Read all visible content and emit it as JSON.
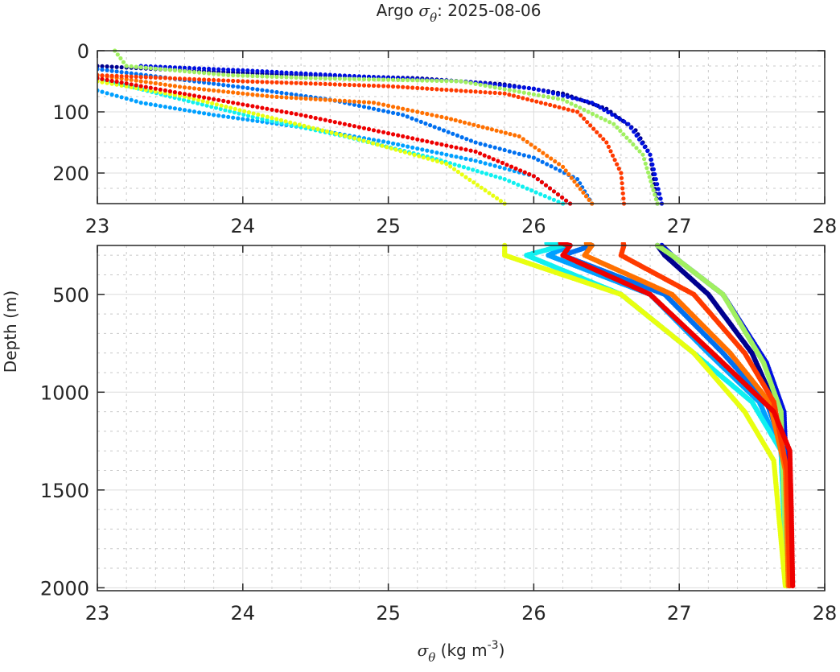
{
  "chart_data": [
    {
      "type": "scatter",
      "panel": "upper",
      "title_prefix": "Argo ",
      "title_symbol": "σ",
      "title_subscript": "θ",
      "title_suffix": ": 2025-08-06",
      "xlabel": "",
      "ylabel": "",
      "xlim": [
        23,
        28
      ],
      "ylim": [
        0,
        250
      ],
      "y_reversed": true,
      "xticks": [
        "23",
        "24",
        "25",
        "26",
        "27",
        "28"
      ],
      "yticks": [
        "0",
        "100",
        "200"
      ],
      "ytick_values": [
        0,
        100,
        200
      ],
      "grid": true,
      "minor_grid": true
    },
    {
      "type": "scatter",
      "panel": "lower",
      "xlabel_symbol": "σ",
      "xlabel_subscript": "θ",
      "xlabel_units": " (kg m",
      "xlabel_exp": "-3",
      "xlabel_close": ")",
      "ylabel": "Depth (m)",
      "xlim": [
        23,
        28
      ],
      "ylim": [
        250,
        2015
      ],
      "y_reversed": true,
      "xticks": [
        "23",
        "24",
        "25",
        "26",
        "27",
        "28"
      ],
      "yticks": [
        "500",
        "1000",
        "1500",
        "2000"
      ],
      "ytick_values": [
        500,
        1000,
        1500,
        2000
      ],
      "grid": true,
      "minor_grid": true
    }
  ],
  "profiles": [
    {
      "name": "profile-dark-navy",
      "color": "#00008f",
      "points": [
        [
          23.0,
          25
        ],
        [
          23.4,
          30
        ],
        [
          24.2,
          38
        ],
        [
          25.2,
          45
        ],
        [
          25.8,
          55
        ],
        [
          26.2,
          70
        ],
        [
          26.5,
          95
        ],
        [
          26.7,
          130
        ],
        [
          26.8,
          170
        ],
        [
          26.85,
          250
        ],
        [
          26.9,
          300
        ],
        [
          27.2,
          500
        ],
        [
          27.5,
          800
        ],
        [
          27.62,
          1000
        ],
        [
          27.7,
          1300
        ],
        [
          27.72,
          1600
        ],
        [
          27.74,
          2000
        ]
      ]
    },
    {
      "name": "profile-blue",
      "color": "#0010e0",
      "points": [
        [
          23.3,
          25
        ],
        [
          24.0,
          32
        ],
        [
          24.8,
          42
        ],
        [
          25.5,
          50
        ],
        [
          26.0,
          62
        ],
        [
          26.4,
          85
        ],
        [
          26.65,
          120
        ],
        [
          26.8,
          170
        ],
        [
          26.88,
          250
        ],
        [
          26.95,
          300
        ],
        [
          27.3,
          500
        ],
        [
          27.6,
          850
        ],
        [
          27.72,
          1100
        ],
        [
          27.74,
          1500
        ],
        [
          27.76,
          2000
        ]
      ]
    },
    {
      "name": "profile-mid-blue",
      "color": "#0070f0",
      "points": [
        [
          23.0,
          30
        ],
        [
          23.5,
          45
        ],
        [
          24.0,
          60
        ],
        [
          24.6,
          80
        ],
        [
          25.1,
          105
        ],
        [
          25.6,
          150
        ],
        [
          26.0,
          175
        ],
        [
          26.3,
          210
        ],
        [
          26.4,
          250
        ],
        [
          26.2,
          300
        ],
        [
          26.9,
          500
        ],
        [
          27.3,
          800
        ],
        [
          27.6,
          1050
        ],
        [
          27.72,
          1300
        ],
        [
          27.75,
          2000
        ]
      ]
    },
    {
      "name": "profile-sky-blue",
      "color": "#00a0ff",
      "points": [
        [
          23.0,
          65
        ],
        [
          23.3,
          85
        ],
        [
          23.8,
          105
        ],
        [
          24.4,
          125
        ],
        [
          25.0,
          150
        ],
        [
          25.6,
          180
        ],
        [
          26.0,
          205
        ],
        [
          26.25,
          250
        ],
        [
          26.1,
          300
        ],
        [
          26.8,
          500
        ],
        [
          27.2,
          800
        ],
        [
          27.55,
          1050
        ],
        [
          27.7,
          1300
        ],
        [
          27.74,
          2000
        ]
      ]
    },
    {
      "name": "profile-cyan",
      "color": "#10f0f0",
      "points": [
        [
          23.0,
          45
        ],
        [
          23.5,
          75
        ],
        [
          24.1,
          110
        ],
        [
          24.7,
          140
        ],
        [
          25.3,
          175
        ],
        [
          25.8,
          210
        ],
        [
          26.2,
          250
        ],
        [
          25.95,
          300
        ],
        [
          26.6,
          500
        ],
        [
          27.1,
          800
        ],
        [
          27.5,
          1050
        ],
        [
          27.7,
          1300
        ],
        [
          27.74,
          2000
        ]
      ]
    },
    {
      "name": "profile-lime",
      "color": "#a0f060",
      "points": [
        [
          23.12,
          0
        ],
        [
          23.2,
          25
        ],
        [
          23.9,
          40
        ],
        [
          24.5,
          45
        ],
        [
          25.5,
          50
        ],
        [
          26.2,
          80
        ],
        [
          26.55,
          120
        ],
        [
          26.75,
          170
        ],
        [
          26.85,
          250
        ],
        [
          26.95,
          300
        ],
        [
          27.3,
          500
        ],
        [
          27.58,
          850
        ],
        [
          27.7,
          1100
        ],
        [
          27.74,
          2000
        ]
      ]
    },
    {
      "name": "profile-yellow",
      "color": "#e8ff10",
      "points": [
        [
          23.0,
          50
        ],
        [
          23.6,
          75
        ],
        [
          24.2,
          110
        ],
        [
          24.8,
          145
        ],
        [
          25.4,
          185
        ],
        [
          25.8,
          250
        ],
        [
          25.8,
          300
        ],
        [
          26.6,
          500
        ],
        [
          27.1,
          800
        ],
        [
          27.45,
          1100
        ],
        [
          27.65,
          1350
        ],
        [
          27.73,
          2000
        ]
      ]
    },
    {
      "name": "profile-orange",
      "color": "#ff7000",
      "points": [
        [
          23.0,
          40
        ],
        [
          23.6,
          60
        ],
        [
          24.2,
          75
        ],
        [
          24.9,
          85
        ],
        [
          25.4,
          110
        ],
        [
          25.9,
          140
        ],
        [
          26.2,
          190
        ],
        [
          26.4,
          250
        ],
        [
          26.35,
          300
        ],
        [
          26.95,
          500
        ],
        [
          27.35,
          800
        ],
        [
          27.62,
          1050
        ],
        [
          27.73,
          1400
        ],
        [
          27.75,
          2000
        ]
      ]
    },
    {
      "name": "profile-red-orange",
      "color": "#ff3a00",
      "points": [
        [
          23.0,
          40
        ],
        [
          24.0,
          50
        ],
        [
          25.0,
          58
        ],
        [
          25.8,
          70
        ],
        [
          26.3,
          100
        ],
        [
          26.5,
          150
        ],
        [
          26.6,
          200
        ],
        [
          26.62,
          250
        ],
        [
          26.6,
          300
        ],
        [
          27.1,
          500
        ],
        [
          27.45,
          800
        ],
        [
          27.65,
          1050
        ],
        [
          27.74,
          1400
        ],
        [
          27.76,
          2000
        ]
      ]
    },
    {
      "name": "profile-red",
      "color": "#ee0000",
      "points": [
        [
          23.0,
          45
        ],
        [
          23.7,
          75
        ],
        [
          24.4,
          105
        ],
        [
          25.0,
          135
        ],
        [
          25.6,
          165
        ],
        [
          26.0,
          205
        ],
        [
          26.25,
          250
        ],
        [
          26.2,
          300
        ],
        [
          26.8,
          500
        ],
        [
          27.3,
          850
        ],
        [
          27.65,
          1100
        ],
        [
          27.76,
          1300
        ],
        [
          27.77,
          1600
        ],
        [
          27.78,
          2000
        ]
      ]
    }
  ]
}
